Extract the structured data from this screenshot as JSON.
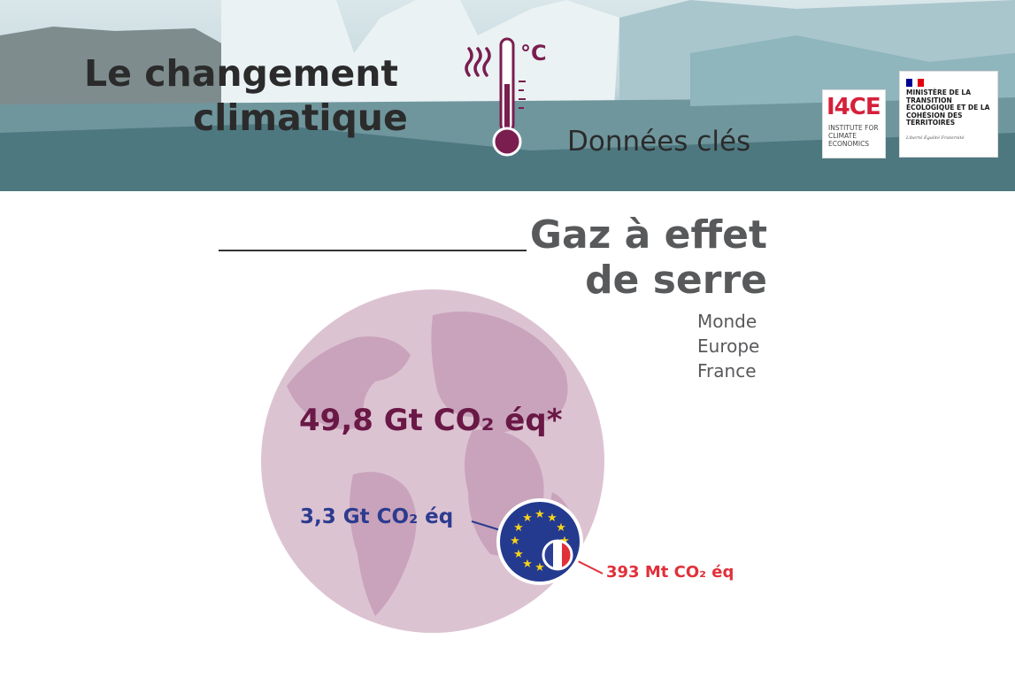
{
  "header": {
    "title_line1": "Le changement",
    "title_line2": "climatique",
    "thermometer_unit": "°C",
    "subtitle": "Données clés",
    "logo_i4ce_big": "I4CE",
    "logo_i4ce_small": "INSTITUTE FOR CLIMATE ECONOMICS",
    "logo_ministry_text": "MINISTÈRE DE LA TRANSITION ÉCOLOGIQUE ET DE LA COHÉSION DES TERRITOIRES",
    "logo_ministry_motto": "Liberté Égalité Fraternité",
    "icons": [
      "thermometer-icon",
      "heat-waves-icon"
    ]
  },
  "section": {
    "title_line1": "Gaz à effet",
    "title_line2": "de serre",
    "legend": [
      "Monde",
      "Europe",
      "France"
    ]
  },
  "figures": {
    "world_value": "49,8 Gt CO₂ éq*",
    "europe_value": "3,3 Gt CO₂ éq",
    "france_value": "393 Mt CO₂ éq"
  },
  "colors": {
    "world": "#6a1846",
    "europe": "#2b3b8f",
    "france": "#e0303a",
    "globe_fill": "#dcc3d2",
    "globe_land": "#c9a3bb",
    "text_gray": "#58595b"
  }
}
